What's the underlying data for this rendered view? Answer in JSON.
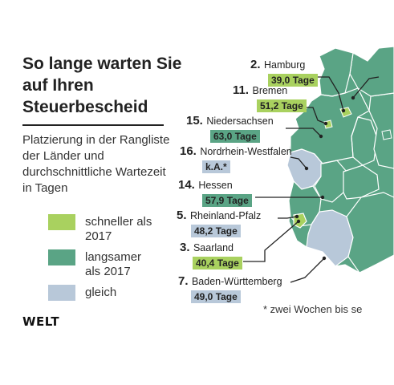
{
  "title": "So lange warten Sie auf Ihren Steuerbescheid",
  "subtitle": "Platzierung in der Rangliste der Länder und durchschnittliche Wartezeit in Tagen",
  "legend": [
    {
      "label": "schneller als 2017",
      "color": "#a9d15f"
    },
    {
      "label": "langsamer als 2017",
      "color": "#5aa485"
    },
    {
      "label": "gleich",
      "color": "#b8c8d9"
    }
  ],
  "brand": "WELT",
  "footnote": "* zwei Wochen bis se",
  "states": [
    {
      "rank": "2.",
      "name": "Hamburg",
      "value": "39,0 Tage",
      "status": "schneller"
    },
    {
      "rank": "11.",
      "name": "Bremen",
      "value": "51,2 Tage",
      "status": "schneller"
    },
    {
      "rank": "15.",
      "name": "Niedersachsen",
      "value": "63,0 Tage",
      "status": "langsamer"
    },
    {
      "rank": "16.",
      "name": "Nordrhein-Westfalen",
      "value": "k.A.*",
      "status": "gleich"
    },
    {
      "rank": "14.",
      "name": "Hessen",
      "value": "57,9 Tage",
      "status": "langsamer"
    },
    {
      "rank": "5.",
      "name": "Rheinland-Pfalz",
      "value": "48,2 Tage",
      "status": "gleich"
    },
    {
      "rank": "3.",
      "name": "Saarland",
      "value": "40,4 Tage",
      "status": "schneller"
    },
    {
      "rank": "7.",
      "name": "Baden-Württemberg",
      "value": "49,0 Tage",
      "status": "gleich"
    }
  ]
}
